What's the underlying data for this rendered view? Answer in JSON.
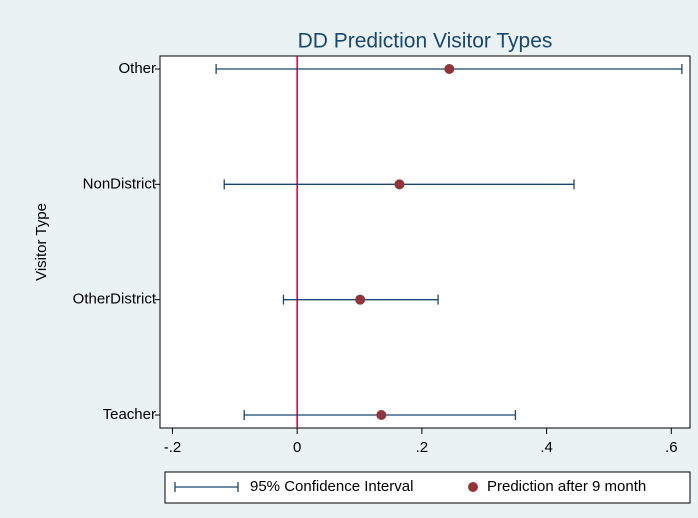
{
  "chart_data": {
    "type": "errorbar",
    "title": "DD Prediction Visitor Types",
    "y_label": "Visitor Type",
    "categories": [
      "Other",
      "NonDistrict",
      "OtherDistrict",
      "Teacher"
    ],
    "series": [
      {
        "name": "95% Confidence Interval",
        "color": "#1a476f",
        "lower": [
          -0.13,
          -0.117,
          -0.022,
          -0.085
        ],
        "upper": [
          0.617,
          0.444,
          0.226,
          0.35
        ]
      },
      {
        "name": "Prediction after 9 month",
        "color": "#90353b",
        "values": [
          0.244,
          0.164,
          0.101,
          0.135
        ]
      }
    ],
    "xlim": [
      -0.22,
      0.63
    ],
    "xticks": [
      {
        "value": -0.2,
        "label": "-.2"
      },
      0,
      {
        "value": 0.2,
        "label": ".2"
      },
      {
        "value": 0.4,
        "label": ".4"
      },
      {
        "value": 0.6,
        "label": ".6"
      }
    ],
    "xline": 0,
    "xline_color": "#c10534",
    "legend": "bottom"
  }
}
